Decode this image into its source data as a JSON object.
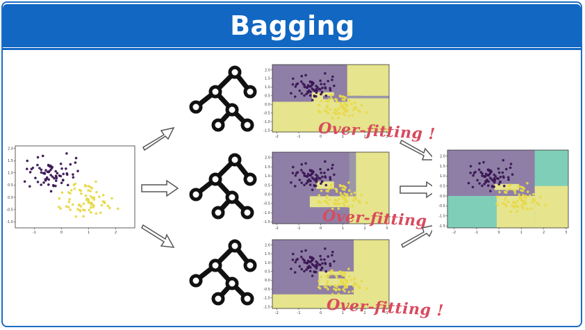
{
  "title": "Bagging",
  "overfitting_label": "Over-fitting !",
  "colors": {
    "banner": "#1167c2",
    "purple_region": "#8f7fa6",
    "yellow_region": "#e6e48c",
    "teal_region": "#7fcfb8",
    "purple_point": "#3b1755",
    "yellow_point": "#e8d94a",
    "annotation": "#d84a5e"
  },
  "icons": [
    "decision-tree-icon",
    "right-arrow-icon"
  ],
  "ticks": {
    "input_x": [
      "-1",
      "0",
      "1",
      "2"
    ],
    "input_y": [
      "2.0",
      "1.5",
      "1.0",
      "0.5",
      "0.0",
      "-0.5",
      "-1.0"
    ],
    "tree_x": [
      "-2",
      "-1",
      "0",
      "1",
      "2",
      "3"
    ],
    "tree_y": [
      "2.0",
      "1.5",
      "1.0",
      "0.5",
      "0.0",
      "-0.5",
      "-1.0",
      "-1.5"
    ],
    "ensemble_x": [
      "-2",
      "-1",
      "0",
      "1",
      "2",
      "3"
    ],
    "ensemble_y": [
      "2.0",
      "1.5",
      "1.0",
      "0.5",
      "0.0",
      "-0.5",
      "-1.0",
      "-1.5"
    ]
  }
}
